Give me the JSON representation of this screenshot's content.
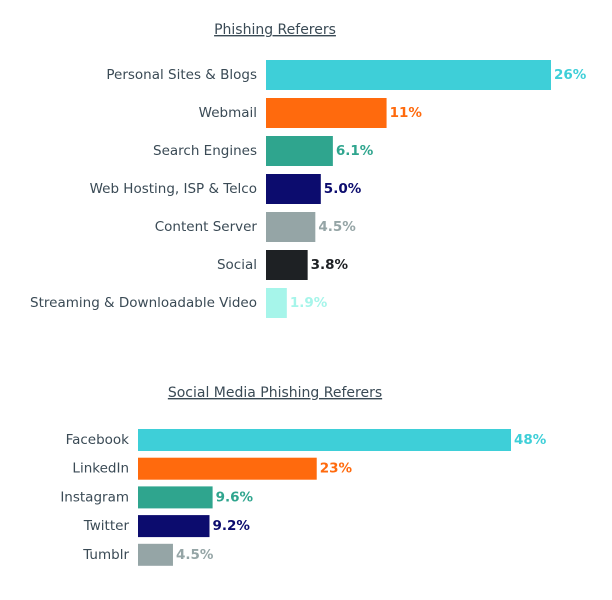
{
  "chart_data": [
    {
      "type": "bar",
      "orientation": "horizontal",
      "title": "Phishing Referers",
      "categories": [
        "Personal Sites & Blogs",
        "Webmail",
        "Search Engines",
        "Web Hosting, ISP & Telco",
        "Content Server",
        "Social",
        "Streaming & Downloadable Video"
      ],
      "values": [
        26,
        11,
        6.1,
        5.0,
        4.5,
        3.8,
        1.9
      ],
      "value_labels": [
        "26%",
        "11%",
        "6.1%",
        "5.0%",
        "4.5%",
        "3.8%",
        "1.9%"
      ],
      "colors": [
        "#3ecfd8",
        "#ff6a0d",
        "#2fa58e",
        "#0c0c6e",
        "#95a5a6",
        "#1e2124",
        "#a6f5ea"
      ]
    },
    {
      "type": "bar",
      "orientation": "horizontal",
      "title": "Social Media Phishing Referers",
      "categories": [
        "Facebook",
        "LinkedIn",
        "Instagram",
        "Twitter",
        "Tumblr"
      ],
      "values": [
        48,
        23,
        9.6,
        9.2,
        4.5
      ],
      "value_labels": [
        "48%",
        "23%",
        "9.6%",
        "9.2%",
        "4.5%"
      ],
      "colors": [
        "#3ecfd8",
        "#ff6a0d",
        "#2fa58e",
        "#0c0c6e",
        "#95a5a6"
      ]
    }
  ]
}
